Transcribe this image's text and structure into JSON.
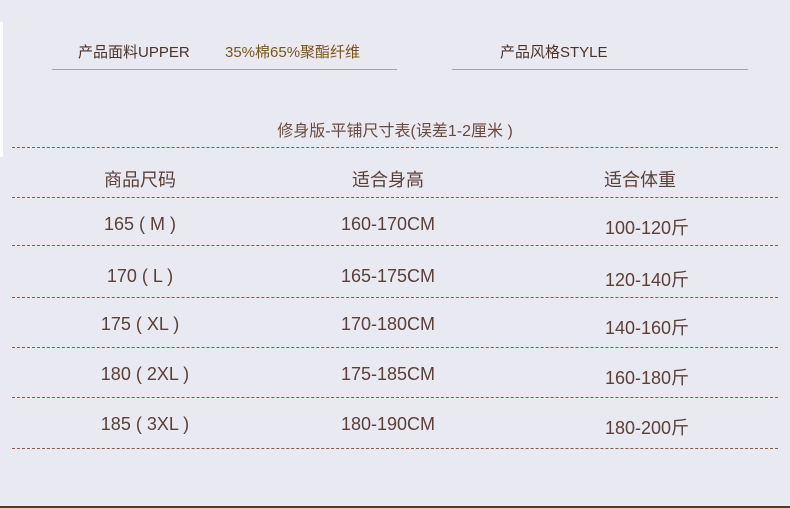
{
  "info": {
    "fabric_label": "产品面料UPPER",
    "fabric_value": "35%棉65%聚酯纤维",
    "style_label": "产品风格STYLE"
  },
  "table": {
    "title": "修身版-平铺尺寸表(误差1-2厘米 )",
    "headers": [
      "商品尺码",
      "适合身高",
      "适合体重"
    ],
    "rows": [
      [
        "165 ( M )",
        "160-170CM",
        "100-120斤"
      ],
      [
        "170 ( L )",
        "165-175CM",
        "120-140斤"
      ],
      [
        "175 ( XL )",
        "170-180CM",
        "140-160斤"
      ],
      [
        "180 ( 2XL )",
        "175-185CM",
        "160-180斤"
      ],
      [
        "185 ( 3XL )",
        "180-190CM",
        "180-200斤"
      ]
    ]
  }
}
